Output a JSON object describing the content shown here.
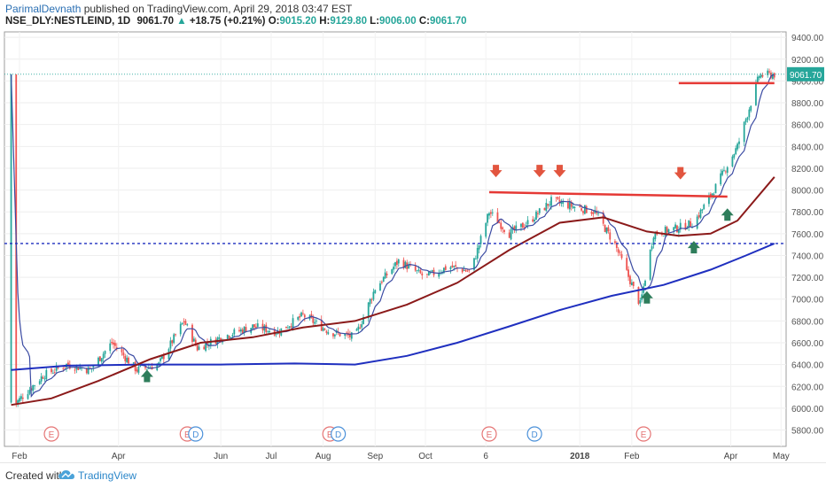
{
  "header": {
    "author": "ParimalDevnath",
    "published": " published on TradingView.com, April 29, 2018 03:47 EST",
    "symbol": "NSE_DLY:NESTLEIND, 1D",
    "last": "9061.70",
    "change_arrow": "▲",
    "change": "+18.75 (+0.21%)",
    "o_label": "O:",
    "o_value": "9015.20",
    "h_label": "H:",
    "h_value": "9129.80",
    "l_label": "L:",
    "l_value": "9006.00",
    "c_label": "C:",
    "c_value": "9061.70"
  },
  "footer": {
    "created": "Created with",
    "brand": "TradingView"
  },
  "colors": {
    "up": "#26a69a",
    "down": "#ef5350",
    "blue_ma": "#1f2fbf",
    "maroon_ma": "#8b1a1a",
    "fast_ma": "#3b4ba3",
    "resistance": "#e53935",
    "support": "#1f2fbf",
    "arrow_down": "#e2553f",
    "arrow_up": "#2e7d5b",
    "earnings": "#e57373",
    "dividend": "#4a90d9"
  },
  "chart_data": {
    "type": "candlestick",
    "price_label": "9061.70",
    "ylim": [
      5650,
      9450
    ],
    "y_ticks": [
      "9400.00",
      "9200.00",
      "9000.00",
      "8800.00",
      "8600.00",
      "8400.00",
      "8200.00",
      "8000.00",
      "7800.00",
      "7600.00",
      "7400.00",
      "7200.00",
      "7000.00",
      "6800.00",
      "6600.00",
      "6400.00",
      "6200.00",
      "6000.00",
      "5800.00"
    ],
    "x_tick_labels": [
      "Feb",
      "Apr",
      "Jun",
      "Jul",
      "Aug",
      "Sep",
      "Oct",
      "6",
      "2018",
      "Feb",
      "Apr",
      "May"
    ],
    "price_anchors": [
      [
        "2017-01-30",
        6050
      ],
      [
        "2017-02-15",
        6300
      ],
      [
        "2017-03-01",
        6400
      ],
      [
        "2017-03-15",
        6350
      ],
      [
        "2017-03-28",
        6600
      ],
      [
        "2017-04-12",
        6350
      ],
      [
        "2017-04-25",
        6400
      ],
      [
        "2017-05-10",
        6800
      ],
      [
        "2017-05-18",
        6550
      ],
      [
        "2017-06-01",
        6650
      ],
      [
        "2017-06-20",
        6750
      ],
      [
        "2017-07-05",
        6700
      ],
      [
        "2017-07-20",
        6850
      ],
      [
        "2017-08-05",
        6700
      ],
      [
        "2017-08-20",
        6650
      ],
      [
        "2017-09-01",
        7100
      ],
      [
        "2017-09-15",
        7350
      ],
      [
        "2017-10-01",
        7200
      ],
      [
        "2017-10-15",
        7300
      ],
      [
        "2017-10-28",
        7250
      ],
      [
        "2017-11-08",
        7800
      ],
      [
        "2017-11-20",
        7600
      ],
      [
        "2017-12-01",
        7700
      ],
      [
        "2017-12-15",
        7900
      ],
      [
        "2017-12-28",
        7850
      ],
      [
        "2018-01-10",
        7800
      ],
      [
        "2018-01-22",
        7500
      ],
      [
        "2018-02-06",
        6950
      ],
      [
        "2018-02-14",
        7600
      ],
      [
        "2018-02-28",
        7650
      ],
      [
        "2018-03-10",
        7700
      ],
      [
        "2018-03-22",
        8000
      ],
      [
        "2018-04-05",
        8400
      ],
      [
        "2018-04-18",
        9050
      ],
      [
        "2018-04-27",
        9060
      ]
    ],
    "series": [
      {
        "name": "",
        "values": [
          [
            "2017-01-27",
            6350
          ],
          [
            "2017-03-01",
            6390
          ],
          [
            "2017-04-15",
            6400
          ],
          [
            "2017-06-01",
            6400
          ],
          [
            "2017-07-15",
            6410
          ],
          [
            "2017-08-20",
            6400
          ],
          [
            "2017-09-20",
            6480
          ],
          [
            "2017-10-20",
            6600
          ],
          [
            "2017-11-20",
            6750
          ],
          [
            "2017-12-20",
            6900
          ],
          [
            "2018-01-20",
            7030
          ],
          [
            "2018-02-20",
            7130
          ],
          [
            "2018-03-20",
            7270
          ],
          [
            "2018-04-10",
            7400
          ],
          [
            "2018-04-27",
            7510
          ]
        ]
      },
      {
        "name": "",
        "values": [
          [
            "2017-01-27",
            6030
          ],
          [
            "2017-02-20",
            6090
          ],
          [
            "2017-03-20",
            6250
          ],
          [
            "2017-04-20",
            6450
          ],
          [
            "2017-05-20",
            6600
          ],
          [
            "2017-06-20",
            6650
          ],
          [
            "2017-07-20",
            6740
          ],
          [
            "2017-08-20",
            6800
          ],
          [
            "2017-09-20",
            6950
          ],
          [
            "2017-10-20",
            7150
          ],
          [
            "2017-11-20",
            7450
          ],
          [
            "2017-12-20",
            7700
          ],
          [
            "2018-01-15",
            7750
          ],
          [
            "2018-02-10",
            7620
          ],
          [
            "2018-03-01",
            7580
          ],
          [
            "2018-03-20",
            7600
          ],
          [
            "2018-04-05",
            7720
          ],
          [
            "2018-04-27",
            8120
          ]
        ]
      }
    ],
    "resistance_line": {
      "from": [
        "2017-11-08",
        7980
      ],
      "to": [
        "2018-03-30",
        7940
      ]
    },
    "resistance_line_2": {
      "from": [
        "2018-03-01",
        8980
      ],
      "to": [
        "2018-04-27",
        8980
      ]
    },
    "support_line": 7510,
    "current_price_line": 9061.7,
    "arrows_down": [
      [
        "2017-11-12",
        8150
      ],
      [
        "2017-12-08",
        8150
      ],
      [
        "2017-12-20",
        8150
      ],
      [
        "2018-03-02",
        8130
      ]
    ],
    "arrows_up": [
      [
        "2017-04-18",
        6320
      ],
      [
        "2018-02-10",
        7040
      ],
      [
        "2018-03-10",
        7500
      ],
      [
        "2018-03-30",
        7800
      ]
    ],
    "events": [
      {
        "date": "2017-02-20",
        "label": "E",
        "kind": "earnings"
      },
      {
        "date": "2017-05-12",
        "label": "E",
        "kind": "earnings"
      },
      {
        "date": "2017-05-17",
        "label": "D",
        "kind": "dividend"
      },
      {
        "date": "2017-08-05",
        "label": "E",
        "kind": "earnings"
      },
      {
        "date": "2017-08-10",
        "label": "D",
        "kind": "dividend"
      },
      {
        "date": "2017-11-08",
        "label": "E",
        "kind": "earnings"
      },
      {
        "date": "2017-12-05",
        "label": "D",
        "kind": "dividend"
      },
      {
        "date": "2018-02-08",
        "label": "E",
        "kind": "earnings"
      }
    ]
  }
}
